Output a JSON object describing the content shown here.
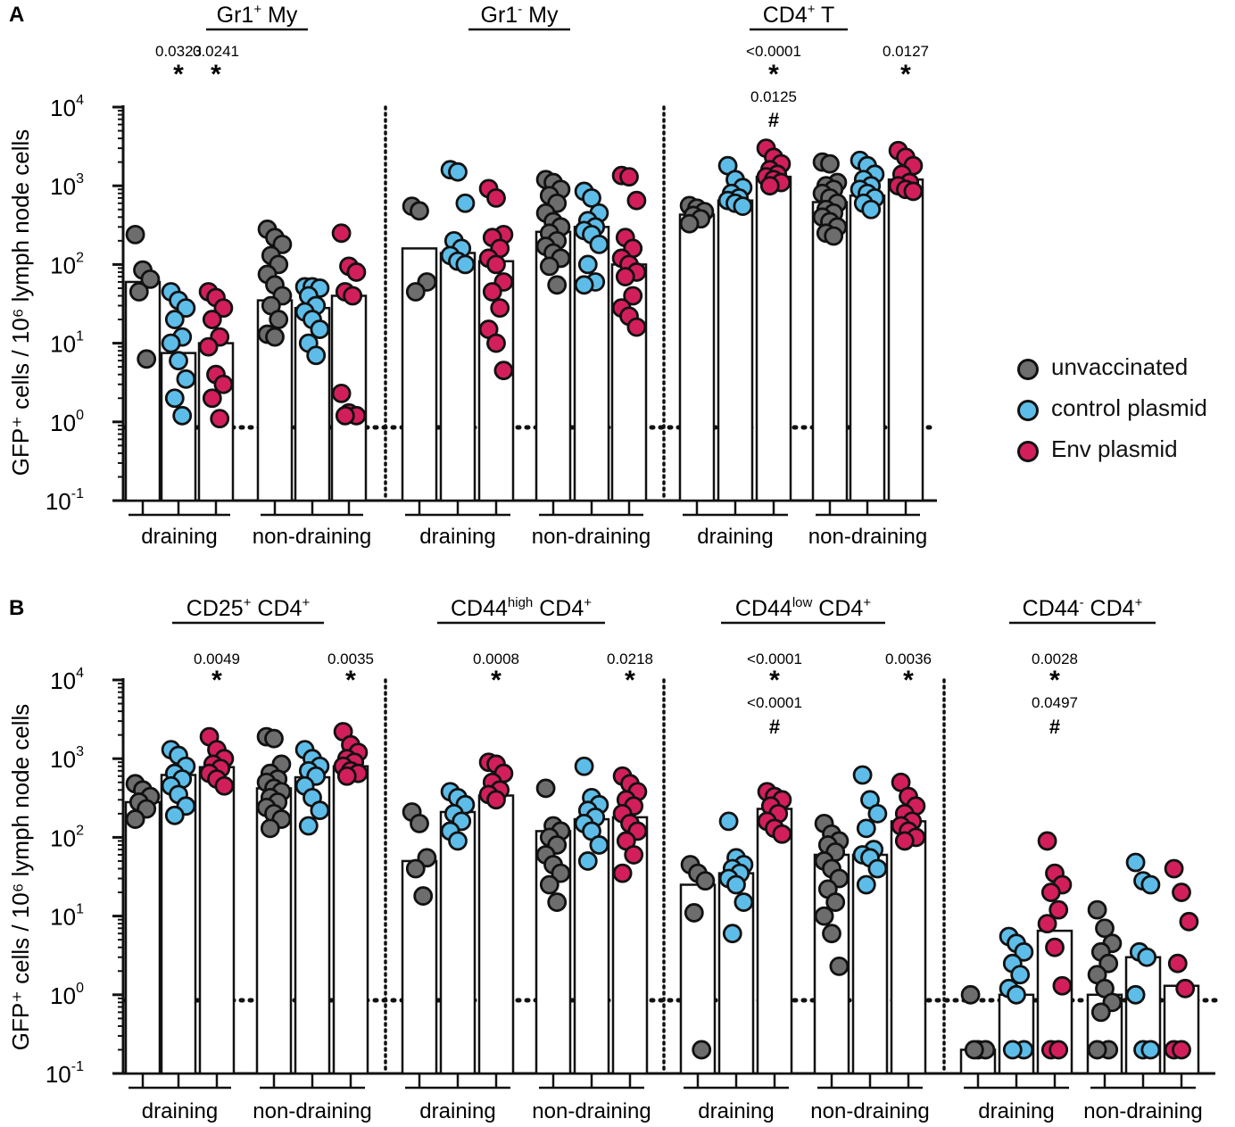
{
  "colors": {
    "unvaccinated": "#6d6d6d",
    "control": "#5dbde8",
    "env": "#d21f5c",
    "axis": "#111111",
    "background": "#ffffff"
  },
  "legend": [
    {
      "label": "unvaccinated",
      "color": "#6d6d6d"
    },
    {
      "label": "control plasmid",
      "color": "#5dbde8"
    },
    {
      "label": "Env plasmid",
      "color": "#d21f5c"
    }
  ],
  "chart_data": [
    {
      "type": "bar",
      "panel": "A",
      "ylabel": "GFP⁺ cells / 10⁶ lymph node cells",
      "yscale": "log",
      "ylim": [
        0.1,
        10000
      ],
      "ytick_labels": [
        {
          "base": "10",
          "exp": "-1"
        },
        {
          "base": "10",
          "exp": "0"
        },
        {
          "base": "10",
          "exp": "1"
        },
        {
          "base": "10",
          "exp": "2"
        },
        {
          "base": "10",
          "exp": "3"
        },
        {
          "base": "10",
          "exp": "4"
        }
      ],
      "detection_limit": 0.85,
      "subpanels": [
        {
          "title": "Gr1⁺ My",
          "group_labels": [
            "draining",
            "non-draining"
          ],
          "series_names": [
            "unvaccinated",
            "control plasmid",
            "Env plasmid"
          ],
          "medians": [
            [
              60,
              7.5,
              10
            ],
            [
              35,
              28,
              40
            ]
          ],
          "points": [
            [
              [
                240,
                85,
                65,
                45,
                6.3
              ],
              [
                45,
                35,
                28,
                20,
                12,
                10,
                6,
                3.5,
                2,
                1.2
              ],
              [
                45,
                38,
                28,
                20,
                12,
                9,
                4,
                3,
                2,
                1.1
              ]
            ],
            [
              [
                280,
                220,
                180,
                130,
                100,
                75,
                55,
                40,
                30,
                20,
                13,
                12
              ],
              [
                52,
                52,
                50,
                40,
                30,
                25,
                20,
                15,
                10,
                7
              ],
              [
                250,
                95,
                80,
                45,
                40,
                2.3,
                1.3,
                1.2,
                1.2
              ]
            ]
          ],
          "annotations": [
            {
              "group": 0,
              "bar": 1,
              "label": "0.0323",
              "symbol": "*"
            },
            {
              "group": 0,
              "bar": 2,
              "label": "0.0241",
              "symbol": "*"
            }
          ]
        },
        {
          "title": "Gr1⁻ My",
          "group_labels": [
            "draining",
            "non-draining"
          ],
          "series_names": [
            "unvaccinated",
            "control plasmid",
            "Env plasmid"
          ],
          "medians": [
            [
              160,
              140,
              110
            ],
            [
              260,
              300,
              100
            ]
          ],
          "points": [
            [
              [
                550,
                480,
                60,
                45
              ],
              [
                1600,
                1500,
                600,
                200,
                160,
                130,
                110,
                100
              ],
              [
                920,
                700,
                240,
                220,
                160,
                120,
                100,
                60,
                45,
                28,
                15,
                10,
                4.5
              ]
            ],
            [
              [
                1200,
                1100,
                900,
                750,
                600,
                450,
                350,
                300,
                250,
                200,
                170,
                140,
                120,
                95,
                55
              ],
              [
                850,
                700,
                450,
                360,
                300,
                270,
                240,
                180,
                100,
                60,
                55
              ],
              [
                1350,
                1300,
                650,
                220,
                160,
                120,
                100,
                80,
                70,
                40,
                28,
                22,
                16
              ]
            ]
          ],
          "annotations": []
        },
        {
          "title": "CD4⁺ T",
          "group_labels": [
            "draining",
            "non-draining"
          ],
          "series_names": [
            "unvaccinated",
            "control plasmid",
            "Env plasmid"
          ],
          "medians": [
            [
              430,
              650,
              1300
            ],
            [
              620,
              750,
              1200
            ]
          ],
          "points": [
            [
              [
                560,
                520,
                470,
                420,
                380,
                330
              ],
              [
                1800,
                1200,
                950,
                800,
                700,
                650,
                600,
                550
              ],
              [
                3000,
                2300,
                1900,
                1600,
                1400,
                1300,
                1200,
                1100,
                1000
              ]
            ],
            [
              [
                2000,
                1900,
                1100,
                1000,
                900,
                800,
                700,
                600,
                500,
                450,
                400,
                350,
                300,
                250,
                230
              ],
              [
                2100,
                1800,
                1400,
                1200,
                1000,
                900,
                800,
                700,
                600,
                500
              ],
              [
                2800,
                2300,
                1800,
                1400,
                1100,
                1000,
                900,
                850
              ]
            ]
          ],
          "annotations": [
            {
              "group": 0,
              "bar": 2,
              "label": "<0.0001",
              "symbol": "*",
              "label2": "0.0125",
              "symbol2": "#"
            },
            {
              "group": 1,
              "bar": 2,
              "label": "0.0127",
              "symbol": "*"
            }
          ]
        }
      ]
    },
    {
      "type": "bar",
      "panel": "B",
      "ylabel": "GFP⁺ cells / 10⁶ lymph node cells",
      "yscale": "log",
      "ylim": [
        0.1,
        10000
      ],
      "ytick_labels": [
        {
          "base": "10",
          "exp": "-1"
        },
        {
          "base": "10",
          "exp": "0"
        },
        {
          "base": "10",
          "exp": "1"
        },
        {
          "base": "10",
          "exp": "2"
        },
        {
          "base": "10",
          "exp": "3"
        },
        {
          "base": "10",
          "exp": "4"
        }
      ],
      "detection_limit": 0.85,
      "subpanels": [
        {
          "title": "CD25⁺ CD4⁺",
          "group_labels": [
            "draining",
            "non-draining"
          ],
          "series_names": [
            "unvaccinated",
            "control plasmid",
            "Env plasmid"
          ],
          "medians": [
            [
              280,
              620,
              780
            ],
            [
              420,
              580,
              800
            ]
          ],
          "points": [
            [
              [
                480,
                400,
                330,
                280,
                230,
                170
              ],
              [
                1300,
                1100,
                800,
                650,
                550,
                450,
                350,
                250,
                190
              ],
              [
                1900,
                1300,
                1000,
                850,
                750,
                650,
                550,
                450
              ]
            ],
            [
              [
                1900,
                1800,
                850,
                650,
                550,
                500,
                420,
                380,
                320,
                280,
                240,
                200,
                170,
                130
              ],
              [
                1300,
                1000,
                800,
                700,
                600,
                450,
                320,
                220,
                140
              ],
              [
                2200,
                1500,
                1200,
                1000,
                900,
                800,
                700,
                650,
                600
              ]
            ]
          ],
          "annotations": [
            {
              "group": 0,
              "bar": 2,
              "label": "0.0049",
              "symbol": "*"
            },
            {
              "group": 1,
              "bar": 2,
              "label": "0.0035",
              "symbol": "*"
            }
          ]
        },
        {
          "title": "CD44ʰⁱᵍʰ CD4⁺",
          "group_labels": [
            "draining",
            "non-draining"
          ],
          "series_names": [
            "unvaccinated",
            "control plasmid",
            "Env plasmid"
          ],
          "medians": [
            [
              50,
              210,
              340
            ],
            [
              120,
              170,
              180
            ]
          ],
          "points": [
            [
              [
                210,
                150,
                55,
                40,
                18
              ],
              [
                380,
                320,
                260,
                200,
                160,
                120,
                90
              ],
              [
                900,
                850,
                650,
                500,
                400,
                350,
                300
              ]
            ],
            [
              [
                420,
                140,
                120,
                100,
                80,
                60,
                45,
                35,
                25,
                15
              ],
              [
                800,
                320,
                260,
                220,
                180,
                150,
                120,
                80,
                50
              ],
              [
                600,
                480,
                380,
                300,
                250,
                200,
                150,
                120,
                90,
                60,
                35
              ]
            ]
          ],
          "annotations": [
            {
              "group": 0,
              "bar": 2,
              "label": "0.0008",
              "symbol": "*"
            },
            {
              "group": 1,
              "bar": 2,
              "label": "0.0218",
              "symbol": "*"
            }
          ]
        },
        {
          "title": "CD44ˡᵒʷ CD4⁺",
          "group_labels": [
            "draining",
            "non-draining"
          ],
          "series_names": [
            "unvaccinated",
            "control plasmid",
            "Env plasmid"
          ],
          "medians": [
            [
              25,
              35,
              230
            ],
            [
              60,
              60,
              160
            ]
          ],
          "points": [
            [
              [
                45,
                35,
                28,
                11,
                0.2
              ],
              [
                160,
                55,
                45,
                40,
                35,
                30,
                25,
                15,
                6
              ],
              [
                380,
                330,
                300,
                250,
                200,
                160,
                130,
                110
              ]
            ],
            [
              [
                150,
                110,
                90,
                80,
                65,
                50,
                40,
                30,
                22,
                15,
                10,
                6,
                2.3
              ],
              [
                620,
                300,
                200,
                130,
                70,
                60,
                55,
                40,
                25
              ],
              [
                500,
                330,
                250,
                200,
                160,
                140,
                120,
                100,
                90
              ]
            ]
          ],
          "annotations": [
            {
              "group": 0,
              "bar": 2,
              "label": "<0.0001",
              "symbol": "*",
              "label2": "<0.0001",
              "symbol2": "#"
            },
            {
              "group": 1,
              "bar": 2,
              "label": "0.0036",
              "symbol": "*"
            }
          ]
        },
        {
          "title": "CD44⁻ CD4⁺",
          "group_labels": [
            "draining",
            "non-draining"
          ],
          "series_names": [
            "unvaccinated",
            "control plasmid",
            "Env plasmid"
          ],
          "medians": [
            [
              0.2,
              1.0,
              6.5
            ],
            [
              1.0,
              3.0,
              1.3
            ]
          ],
          "points": [
            [
              [
                1.0,
                0.2,
                0.2,
                0.2
              ],
              [
                5.5,
                4.5,
                3.5,
                2.5,
                1.8,
                1.2,
                1.0,
                0.2,
                0.2
              ],
              [
                90,
                35,
                25,
                20,
                12,
                8,
                4,
                1.3,
                0.2,
                0.2
              ]
            ],
            [
              [
                12,
                7,
                4.5,
                3.5,
                2.5,
                1.8,
                1.2,
                0.8,
                0.6,
                0.2,
                0.2
              ],
              [
                48,
                28,
                25,
                3.5,
                3,
                1.0,
                0.2,
                0.2
              ],
              [
                40,
                20,
                8.5,
                2.5,
                1.2,
                0.2,
                0.2
              ]
            ]
          ],
          "annotations": [
            {
              "group": 0,
              "bar": 2,
              "label": "0.0028",
              "symbol": "*",
              "label2": "0.0497",
              "symbol2": "#"
            }
          ]
        }
      ]
    }
  ]
}
